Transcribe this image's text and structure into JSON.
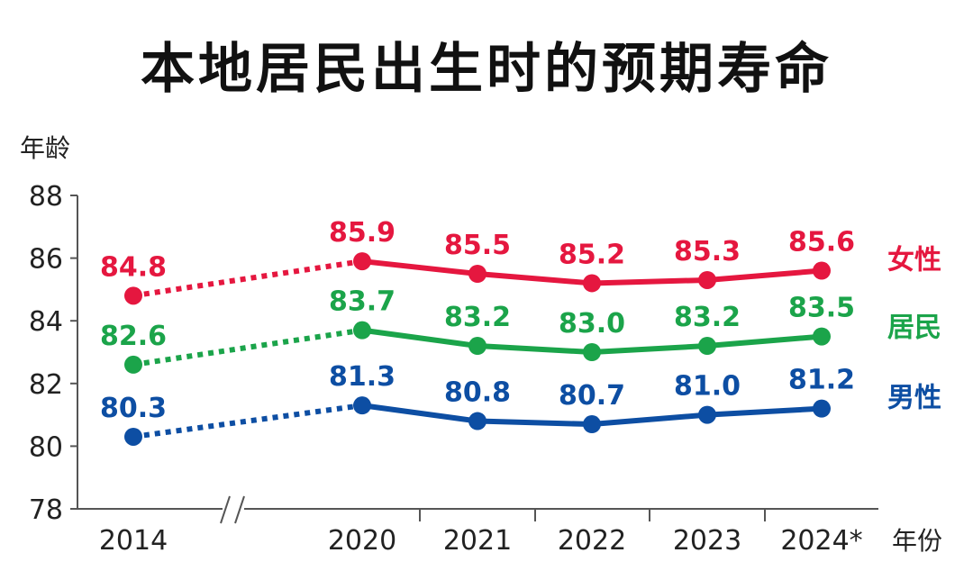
{
  "chart_data": {
    "type": "line",
    "title": "本地居民出生时的预期寿命",
    "ylabel": "年龄",
    "xlabel": "年份",
    "categories": [
      "2014",
      "2020",
      "2021",
      "2022",
      "2023",
      "2024*"
    ],
    "ylim": [
      78,
      88
    ],
    "yticks": [
      78,
      80,
      82,
      84,
      86,
      88
    ],
    "axis_break": "2014–2020",
    "dotted_segment": [
      "2014",
      "2020"
    ],
    "series": [
      {
        "name": "女性",
        "color": "#e5173f",
        "values": [
          84.8,
          85.9,
          85.5,
          85.2,
          85.3,
          85.6
        ],
        "labels": [
          "84.8",
          "85.9",
          "85.5",
          "85.2",
          "85.3",
          "85.6"
        ]
      },
      {
        "name": "居民",
        "color": "#1ba44a",
        "values": [
          82.6,
          83.7,
          83.2,
          83.0,
          83.2,
          83.5
        ],
        "labels": [
          "82.6",
          "83.7",
          "83.2",
          "83.0",
          "83.2",
          "83.5"
        ]
      },
      {
        "name": "男性",
        "color": "#0d4ea3",
        "values": [
          80.3,
          81.3,
          80.8,
          80.7,
          81.0,
          81.2
        ],
        "labels": [
          "80.3",
          "81.3",
          "80.8",
          "80.7",
          "81.0",
          "81.2"
        ]
      }
    ]
  }
}
